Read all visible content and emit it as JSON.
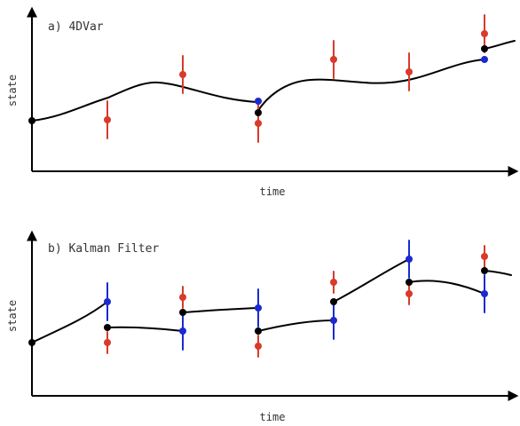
{
  "colors": {
    "observation": "#d93a2b",
    "forecast": "#1a2ad0",
    "analysis": "#000000",
    "axis": "#000000"
  },
  "panels": [
    {
      "id": "a",
      "title": "a) 4DVar",
      "xlabel": "time",
      "ylabel": "state"
    },
    {
      "id": "b",
      "title": "b) Kalman Filter",
      "xlabel": "time",
      "ylabel": "state"
    }
  ]
}
